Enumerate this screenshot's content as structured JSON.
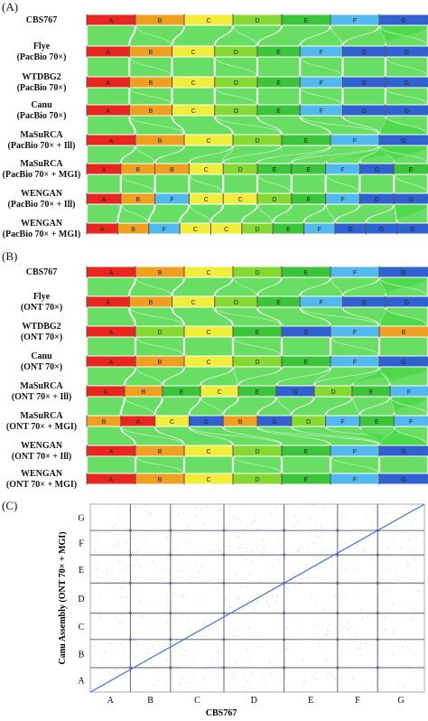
{
  "panelA": {
    "label": "(A)",
    "rows": [
      {
        "l1": "CBS767",
        "l2": "",
        "blocks": [
          [
            "A",
            0
          ],
          [
            "B",
            1
          ],
          [
            "C",
            2
          ],
          [
            "D",
            3
          ],
          [
            "E",
            4
          ],
          [
            "F",
            5
          ],
          [
            "G",
            6
          ]
        ]
      },
      {
        "l1": "Flye",
        "l2": "(PacBio 70×)",
        "blocks": [
          [
            "A",
            0
          ],
          [
            "B",
            1
          ],
          [
            "C",
            2
          ],
          [
            "D",
            3
          ],
          [
            "E",
            4
          ],
          [
            "F",
            5
          ],
          [
            "G",
            6
          ],
          [
            "G",
            6
          ]
        ]
      },
      {
        "l1": "WTDBG2",
        "l2": "(PacBio 70×)",
        "blocks": [
          [
            "A",
            0
          ],
          [
            "B",
            1
          ],
          [
            "C",
            2
          ],
          [
            "D",
            3
          ],
          [
            "E",
            4
          ],
          [
            "F",
            5
          ],
          [
            "G",
            6
          ],
          [
            "G",
            6
          ]
        ]
      },
      {
        "l1": "Canu",
        "l2": "(PacBio 70×)",
        "blocks": [
          [
            "A",
            0
          ],
          [
            "B",
            1
          ],
          [
            "C",
            2
          ],
          [
            "D",
            3
          ],
          [
            "E",
            4
          ],
          [
            "F",
            5
          ],
          [
            "G",
            6
          ],
          [
            "G",
            6
          ]
        ]
      },
      {
        "l1": "MaSuRCA",
        "l2": "(PacBio 70× + Ill)",
        "blocks": [
          [
            "A",
            0
          ],
          [
            "B",
            1
          ],
          [
            "C",
            2
          ],
          [
            "D",
            3
          ],
          [
            "E",
            4
          ],
          [
            "F",
            5
          ],
          [
            "G",
            6
          ]
        ]
      },
      {
        "l1": "MaSuRCA",
        "l2": "(PacBio 70× + MGI)",
        "blocks": [
          [
            "A",
            0
          ],
          [
            "B",
            1
          ],
          [
            "B",
            1
          ],
          [
            "C",
            2
          ],
          [
            "D",
            3
          ],
          [
            "E",
            4
          ],
          [
            "E",
            4
          ],
          [
            "F",
            5
          ],
          [
            "G",
            6
          ],
          [
            "E",
            4
          ]
        ]
      },
      {
        "l1": "WENGAN",
        "l2": "(PacBio 70× + Ill)",
        "blocks": [
          [
            "A",
            0
          ],
          [
            "B",
            1
          ],
          [
            "F",
            5
          ],
          [
            "C",
            2
          ],
          [
            "C",
            2
          ],
          [
            "D",
            3
          ],
          [
            "E",
            4
          ],
          [
            "F",
            5
          ],
          [
            "G",
            6
          ],
          [
            "G",
            6
          ]
        ]
      },
      {
        "l1": "WENGAN",
        "l2": "(PacBio 70× + MGI)",
        "blocks": [
          [
            "A",
            0
          ],
          [
            "B",
            1
          ],
          [
            "F",
            5
          ],
          [
            "C",
            2
          ],
          [
            "C",
            2
          ],
          [
            "D",
            3
          ],
          [
            "E",
            4
          ],
          [
            "F",
            5
          ],
          [
            "G",
            6
          ],
          [
            "G",
            6
          ],
          [
            "G",
            6
          ]
        ]
      }
    ]
  },
  "panelB": {
    "label": "(B)",
    "rows": [
      {
        "l1": "CBS767",
        "l2": "",
        "blocks": [
          [
            "A",
            0
          ],
          [
            "B",
            1
          ],
          [
            "C",
            2
          ],
          [
            "D",
            3
          ],
          [
            "E",
            4
          ],
          [
            "F",
            5
          ],
          [
            "G",
            6
          ]
        ]
      },
      {
        "l1": "Flye",
        "l2": "(ONT 70×)",
        "blocks": [
          [
            "A",
            0
          ],
          [
            "B",
            1
          ],
          [
            "C",
            2
          ],
          [
            "D",
            3
          ],
          [
            "E",
            4
          ],
          [
            "F",
            5
          ],
          [
            "G",
            6
          ],
          [
            "G",
            6
          ]
        ]
      },
      {
        "l1": "WTDBG2",
        "l2": "(ONT 70×)",
        "blocks": [
          [
            "A",
            0
          ],
          [
            "D",
            3
          ],
          [
            "C",
            2
          ],
          [
            "E",
            4
          ],
          [
            "G",
            6
          ],
          [
            "F",
            5
          ],
          [
            "B",
            1
          ]
        ]
      },
      {
        "l1": "Canu",
        "l2": "(ONT 70×)",
        "blocks": [
          [
            "A",
            0
          ],
          [
            "B",
            1
          ],
          [
            "C",
            2
          ],
          [
            "D",
            3
          ],
          [
            "E",
            4
          ],
          [
            "F",
            5
          ],
          [
            "G",
            6
          ]
        ]
      },
      {
        "l1": "MaSuRCA",
        "l2": "(ONT 70× + Ill)",
        "blocks": [
          [
            "A",
            0
          ],
          [
            "B",
            1
          ],
          [
            "E",
            4
          ],
          [
            "C",
            2
          ],
          [
            "E",
            4
          ],
          [
            "G",
            6
          ],
          [
            "D",
            3
          ],
          [
            "E",
            4
          ],
          [
            "F",
            5
          ]
        ]
      },
      {
        "l1": "MaSuRCA",
        "l2": "(ONT 70× + MGI)",
        "blocks": [
          [
            "B",
            1
          ],
          [
            "A",
            0
          ],
          [
            "C",
            2
          ],
          [
            "G",
            6
          ],
          [
            "B",
            1
          ],
          [
            "G",
            6
          ],
          [
            "D",
            3
          ],
          [
            "F",
            5
          ],
          [
            "E",
            4
          ],
          [
            "F",
            5
          ]
        ]
      },
      {
        "l1": "WENGAN",
        "l2": "(ONT 70× + Ill)",
        "blocks": [
          [
            "A",
            0
          ],
          [
            "B",
            1
          ],
          [
            "C",
            2
          ],
          [
            "D",
            3
          ],
          [
            "E",
            4
          ],
          [
            "F",
            5
          ],
          [
            "G",
            6
          ]
        ]
      },
      {
        "l1": "WENGAN",
        "l2": "(ONT 70× + MGI)",
        "blocks": [
          [
            "A",
            0
          ],
          [
            "B",
            1
          ],
          [
            "C",
            2
          ],
          [
            "D",
            3
          ],
          [
            "E",
            4
          ],
          [
            "F",
            5
          ],
          [
            "G",
            6
          ]
        ]
      }
    ]
  },
  "panelC": {
    "label": "(C)",
    "xlabel": "CBS767",
    "ylabel": "Canu Assembly (ONT 70× + MGI)",
    "xticks": [
      "A",
      "B",
      "C",
      "D",
      "E",
      "F",
      "G"
    ],
    "yticks": [
      "A",
      "B",
      "C",
      "D",
      "E",
      "F",
      "G"
    ]
  },
  "colors": [
    "#e8251e",
    "#f0a020",
    "#f2ec3a",
    "#86d832",
    "#3cc43a",
    "#52b8ee",
    "#2f62d0"
  ],
  "ribbon_color": "#4ed84a"
}
